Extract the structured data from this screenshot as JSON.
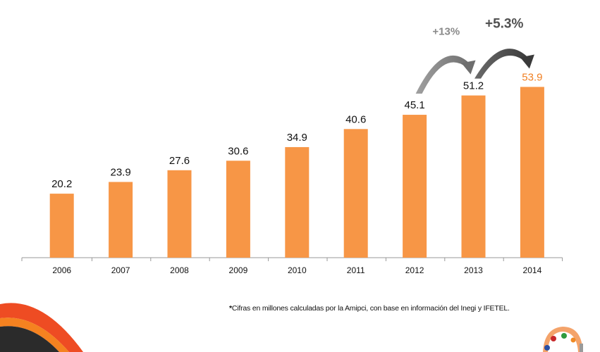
{
  "chart_data": {
    "type": "bar",
    "title": "",
    "xlabel": "",
    "ylabel": "",
    "categories": [
      "2006",
      "2007",
      "2008",
      "2009",
      "2010",
      "2011",
      "2012",
      "2013",
      "2014"
    ],
    "values": [
      20.2,
      23.9,
      27.6,
      30.6,
      34.9,
      40.6,
      45.1,
      51.2,
      53.9
    ],
    "value_labels": [
      "20.2",
      "23.9",
      "27.6",
      "30.6",
      "34.9",
      "40.6",
      "45.1",
      "51.2",
      "53.9"
    ],
    "highlight_index": 8,
    "ylim": [
      0,
      60
    ],
    "grid": false,
    "legend": "none",
    "colors": {
      "bar": "#f79646",
      "label": "#111111",
      "highlight_label": "#f07f22",
      "axis": "#999999",
      "arrow_light": "#8a8a8a",
      "arrow_dark": "#505050"
    },
    "annotations": [
      {
        "text": "+13%",
        "from": "2012",
        "to": "2013",
        "style": "light"
      },
      {
        "text": "+5.3%",
        "from": "2013",
        "to": "2014",
        "style": "dark"
      }
    ]
  },
  "footnote": {
    "asterisk": "*",
    "text": "Cifras en millones calculadas por la Amipci, con base en información del Inegi y IFETEL."
  },
  "decor": {
    "corner_swoosh": "orange-black-swoosh-logo",
    "amipci_logo": "amipci-logo"
  }
}
